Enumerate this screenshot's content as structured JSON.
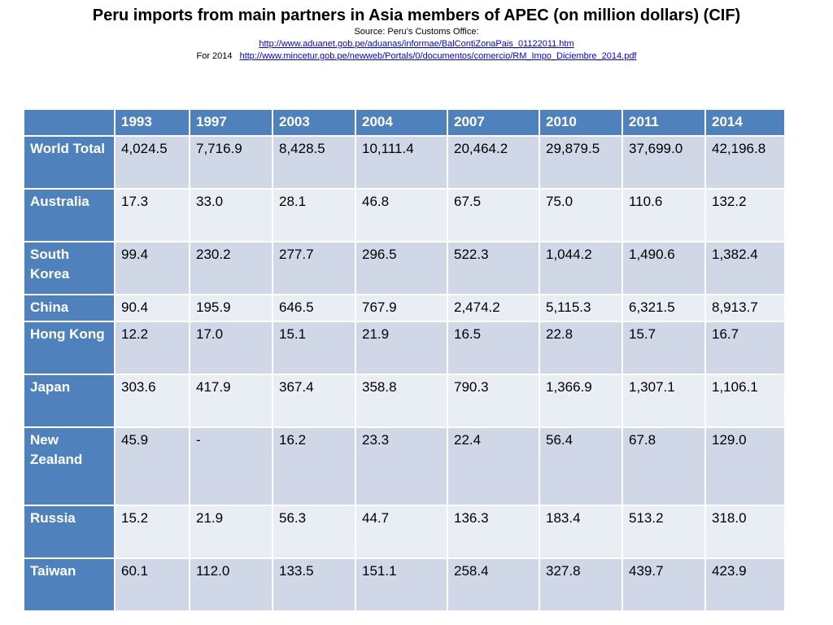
{
  "header": {
    "title": "Peru imports from main partners in Asia members of APEC (on million dollars) (CIF)",
    "source_label": "Source: Peru’s Customs Office:",
    "source_url": "http://www.aduanet.gob.pe/aduanas/informae/BalContiZonaPais_01122011.htm",
    "for_label": "For 2014",
    "for_url": "http://www.mincetur.gob.pe/newweb/Portals/0/documentos/comercio/RM_Impo_Diciembre_2014.pdf"
  },
  "table": {
    "columns": [
      "",
      "1993",
      "1997",
      "2003",
      "2004",
      "2007",
      "2010",
      "2011",
      "2014"
    ],
    "rows": [
      {
        "label": "World Total",
        "values": [
          "4,024.5",
          "7,716.9",
          "8,428.5",
          "10,111.4",
          "20,464.2",
          "29,879.5",
          "37,699.0",
          "42,196.8"
        ]
      },
      {
        "label": "Australia",
        "values": [
          "17.3",
          "33.0",
          "28.1",
          "46.8",
          "67.5",
          "75.0",
          "110.6",
          "132.2"
        ]
      },
      {
        "label": "South Korea",
        "values": [
          "99.4",
          "230.2",
          "277.7",
          "296.5",
          "522.3",
          "1,044.2",
          "1,490.6",
          "1,382.4"
        ]
      },
      {
        "label": "China",
        "values": [
          "90.4",
          "195.9",
          "646.5",
          "767.9",
          "2,474.2",
          "5,115.3",
          "6,321.5",
          "8,913.7"
        ]
      },
      {
        "label": "Hong Kong",
        "values": [
          "12.2",
          "17.0",
          "15.1",
          "21.9",
          "16.5",
          "22.8",
          "15.7",
          "16.7"
        ]
      },
      {
        "label": "Japan",
        "values": [
          "303.6",
          "417.9",
          "367.4",
          "358.8",
          "790.3",
          "1,366.9",
          "1,307.1",
          "1,106.1"
        ]
      },
      {
        "label": "New Zealand",
        "values": [
          "45.9",
          "-",
          "16.2",
          "23.3",
          "22.4",
          "56.4",
          "67.8",
          "129.0"
        ]
      },
      {
        "label": "Russia",
        "values": [
          "15.2",
          "21.9",
          "56.3",
          "44.7",
          "136.3",
          "183.4",
          "513.2",
          "318.0"
        ]
      },
      {
        "label": "Taiwan",
        "values": [
          "60.1",
          "112.0",
          "133.5",
          "151.1",
          "258.4",
          "327.8",
          "439.7",
          "423.9"
        ]
      }
    ]
  },
  "colors": {
    "header_blue": "#4f81bd",
    "row_dark": "#d0d8e8",
    "row_light": "#e9edf4",
    "link": "#0000ee"
  }
}
